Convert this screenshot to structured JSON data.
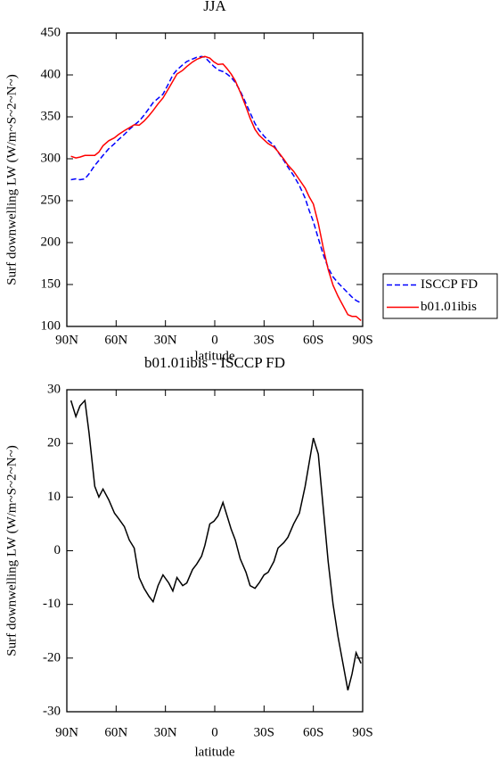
{
  "chart_data": [
    {
      "type": "line",
      "title": "JJA",
      "xlabel": "latitude",
      "ylabel": "Surf downwelling LW (W/m~S~2~N~)",
      "x": [
        87.5,
        84.5,
        82,
        79,
        76.5,
        73,
        70.5,
        68,
        64.5,
        61,
        58.5,
        55,
        52,
        49,
        46,
        43,
        40,
        37.5,
        34.5,
        31.5,
        28,
        25.5,
        23,
        19.5,
        17,
        13.5,
        11,
        8,
        6,
        3,
        0.5,
        -2,
        -5,
        -7.5,
        -10,
        -12.5,
        -15.5,
        -19,
        -21.5,
        -24.5,
        -27,
        -30,
        -32.5,
        -36,
        -38.5,
        -42,
        -44.5,
        -48,
        -51.5,
        -55,
        -57.5,
        -60,
        -63,
        -66,
        -69,
        -72,
        -75,
        -78,
        -81,
        -83.5,
        -86,
        -89
      ],
      "series": [
        {
          "name": "ISCCP FD",
          "color": "#0000ff",
          "linestyle": "dashed",
          "values": [
            275,
            276,
            275,
            276,
            282,
            292,
            298,
            304,
            312,
            318,
            323,
            329,
            335,
            340,
            345,
            352,
            360,
            367,
            372,
            377,
            390,
            400,
            406,
            412,
            416,
            419,
            421,
            422,
            421,
            415,
            410,
            406,
            404,
            401,
            397,
            391,
            381,
            366,
            355,
            342,
            334,
            327,
            322,
            316,
            308,
            298,
            290,
            280,
            268,
            253,
            238,
            225,
            205,
            186,
            170,
            159,
            152,
            146,
            140,
            135,
            131,
            128
          ]
        },
        {
          "name": "b01.01ibis",
          "color": "#ff0000",
          "linestyle": "solid",
          "values": [
            303,
            301,
            302,
            304,
            304,
            304,
            308,
            315.5,
            321.5,
            325,
            329,
            333.5,
            337,
            340.5,
            340,
            345,
            351.5,
            357.5,
            365.5,
            372.5,
            384,
            392.5,
            401,
            405.5,
            410,
            415.5,
            418.5,
            421,
            422,
            420,
            415.5,
            412.5,
            413,
            407.5,
            401,
            393,
            379.5,
            362,
            348.5,
            335,
            328,
            322.5,
            318,
            314,
            308.5,
            299.5,
            292.5,
            285,
            275,
            265,
            254.5,
            246,
            223,
            194,
            168,
            149,
            136,
            125,
            114,
            112,
            112,
            107
          ]
        }
      ],
      "xlim": [
        90,
        -90
      ],
      "xticks": [
        {
          "value": 90,
          "label": "90N"
        },
        {
          "value": 60,
          "label": "60N"
        },
        {
          "value": 30,
          "label": "30N"
        },
        0,
        {
          "value": -30,
          "label": "30S"
        },
        {
          "value": -60,
          "label": "60S"
        },
        {
          "value": -90,
          "label": "90S"
        }
      ],
      "ylim": [
        100,
        450
      ],
      "yticks": [
        100,
        150,
        200,
        250,
        300,
        350,
        400,
        450
      ],
      "legend": "outside right"
    },
    {
      "type": "line",
      "title": "b01.01ibis - ISCCP FD",
      "xlabel": "latitude",
      "ylabel": "Surf downwelling LW (W/m~S~2~N~)",
      "x": [
        87.5,
        84.5,
        82,
        79,
        76.5,
        73,
        70.5,
        68,
        64.5,
        61,
        58.5,
        55,
        52,
        49,
        46,
        43,
        40,
        37.5,
        34.5,
        31.5,
        28,
        25.5,
        23,
        19.5,
        17,
        13.5,
        11,
        8,
        6,
        3,
        0.5,
        -2,
        -5,
        -7.5,
        -10,
        -12.5,
        -15.5,
        -19,
        -21.5,
        -24.5,
        -27,
        -30,
        -32.5,
        -36,
        -38.5,
        -42,
        -44.5,
        -48,
        -51.5,
        -55,
        -57.5,
        -60,
        -63,
        -66,
        -69,
        -72,
        -75,
        -78,
        -81,
        -83.5,
        -86,
        -89
      ],
      "series": [
        {
          "color": "#000000",
          "linestyle": "solid",
          "values": [
            28,
            25,
            27,
            28,
            22,
            12,
            10,
            11.5,
            9.5,
            7,
            6,
            4.5,
            2,
            0.5,
            -5,
            -7,
            -8.5,
            -9.5,
            -6.5,
            -4.5,
            -6,
            -7.5,
            -5,
            -6.5,
            -6,
            -3.5,
            -2.5,
            -1,
            1,
            5,
            5.5,
            6.5,
            9,
            6.5,
            4,
            2,
            -1.5,
            -4,
            -6.5,
            -7,
            -6,
            -4.5,
            -4,
            -2,
            0.5,
            1.5,
            2.5,
            5,
            7,
            12,
            16.5,
            21,
            18,
            8,
            -2,
            -10,
            -16,
            -21,
            -26,
            -23,
            -19,
            -21
          ]
        }
      ],
      "xlim": [
        90,
        -90
      ],
      "xticks": [
        {
          "value": 90,
          "label": "90N"
        },
        {
          "value": 60,
          "label": "60N"
        },
        {
          "value": 30,
          "label": "30N"
        },
        0,
        {
          "value": -30,
          "label": "30S"
        },
        {
          "value": -60,
          "label": "60S"
        },
        {
          "value": -90,
          "label": "90S"
        }
      ],
      "ylim": [
        -30,
        30
      ],
      "yticks": [
        -30,
        -20,
        -10,
        0,
        10,
        20,
        30
      ]
    }
  ]
}
